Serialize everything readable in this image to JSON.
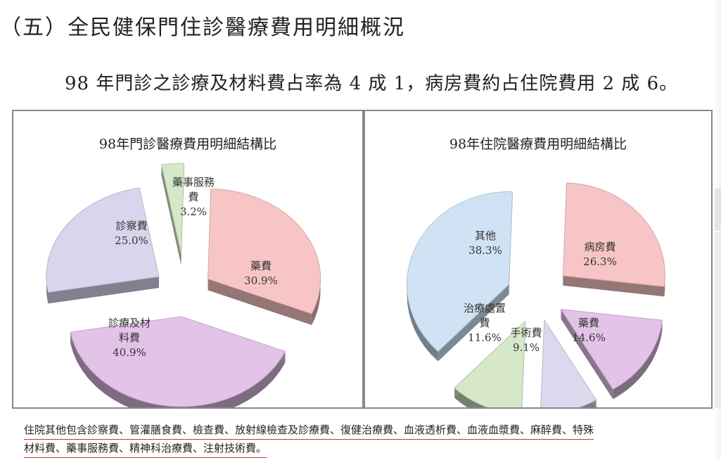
{
  "heading": "（五）全民健保門住診醫療費用明細概況",
  "lead": "98 年門診之診療及材料費占率為 4 成 1，病房費約占住院費用 2 成 6。",
  "chart_data": [
    {
      "type": "pie",
      "title": "98年門診醫療費用明細結構比",
      "slices": [
        {
          "name": "藥事服務費",
          "label_lines": [
            "藥事服務",
            "費",
            "3.2%"
          ],
          "value": 3.2,
          "color": "#d6e8c8"
        },
        {
          "name": "藥費",
          "label_lines": [
            "藥費",
            "30.9%"
          ],
          "value": 30.9,
          "color": "#f7c5c5"
        },
        {
          "name": "診療及材料費",
          "label_lines": [
            "診療及材",
            "料費",
            "40.9%"
          ],
          "value": 40.9,
          "color": "#e3c4e8"
        },
        {
          "name": "診察費",
          "label_lines": [
            "診察費",
            "25.0%"
          ],
          "value": 25.0,
          "color": "#d9d5ec"
        }
      ]
    },
    {
      "type": "pie",
      "title": "98年住院醫療費用明細結構比",
      "slices": [
        {
          "name": "病房費",
          "label_lines": [
            "病房費",
            "26.3%"
          ],
          "value": 26.3,
          "color": "#f7c5c5"
        },
        {
          "name": "藥費",
          "label_lines": [
            "藥費",
            "14.6%"
          ],
          "value": 14.6,
          "color": "#e3c4e8"
        },
        {
          "name": "手術費",
          "label_lines": [
            "手術費",
            "9.1%"
          ],
          "value": 9.1,
          "color": "#ddd8ee"
        },
        {
          "name": "治療處置費",
          "label_lines": [
            "治療處置",
            "費",
            "11.6%"
          ],
          "value": 11.6,
          "color": "#d6e8c8"
        },
        {
          "name": "其他",
          "label_lines": [
            "其他",
            "38.3%"
          ],
          "value": 38.3,
          "color": "#cfe3f4"
        }
      ]
    }
  ],
  "footnote": {
    "line1": "住院其他包含診察費、管灌膳食費、檢查費、放射線檢查及診療費、復健治療費、血液透析費、血液血漿費、麻醉費、特殊",
    "line2": "材料費、藥事服務費、精神科治療費、注射技術費。"
  }
}
